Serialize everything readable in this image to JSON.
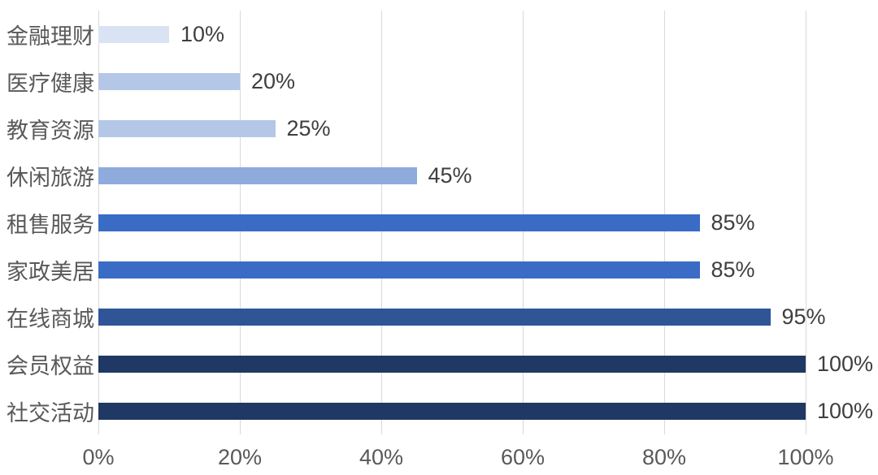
{
  "chart_data": {
    "type": "bar",
    "orientation": "horizontal",
    "title": "",
    "categories": [
      "金融理财",
      "医疗健康",
      "教育资源",
      "休闲旅游",
      "租售服务",
      "家政美居",
      "在线商城",
      "会员权益",
      "社交活动"
    ],
    "values": [
      10,
      20,
      25,
      45,
      85,
      85,
      95,
      100,
      100
    ],
    "value_labels": [
      "10%",
      "20%",
      "25%",
      "45%",
      "85%",
      "85%",
      "95%",
      "100%",
      "100%"
    ],
    "bar_colors": [
      "#dae3f3",
      "#b4c7e7",
      "#b4c7e7",
      "#8faadc",
      "#3a6cc6",
      "#3a6cc6",
      "#2f5597",
      "#1f3864",
      "#1f3864"
    ],
    "xlim": [
      0,
      100
    ],
    "x_tick_labels": [
      "0%",
      "20%",
      "40%",
      "60%",
      "80%",
      "100%"
    ],
    "x_tick_values": [
      0,
      20,
      40,
      60,
      80,
      100
    ],
    "grid": "vertical",
    "legend_position": "none"
  },
  "style": {
    "gridline_color": "#d9d9d9",
    "category_label_color": "#595959",
    "value_label_color": "#3f3f3f",
    "tick_label_color": "#595959",
    "background_color": "#ffffff"
  }
}
